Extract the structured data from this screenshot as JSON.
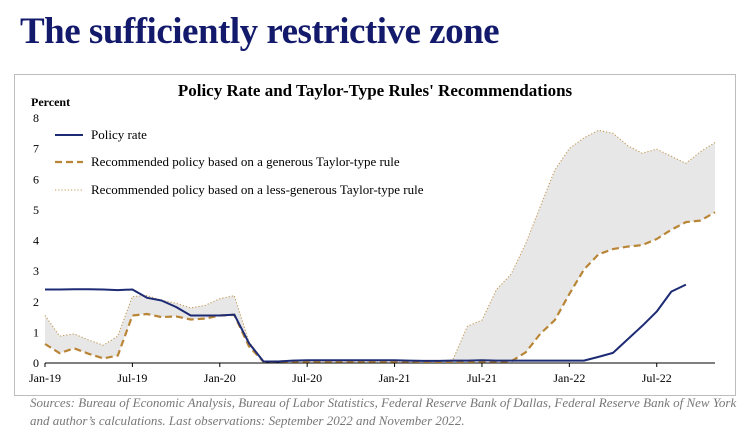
{
  "page_title": "The sufficiently restrictive zone",
  "source_note": "Sources: Bureau of Economic Analysis, Bureau of Labor Statistics, Federal Reserve Bank of Dallas, Federal Reserve Bank of New York and author’s calculations. Last observations: September 2022 and November 2022.",
  "colors": {
    "policy": "#1c2b74",
    "generous": "#b98637",
    "less_generous": "#c39a55",
    "band": "#e7e7e7",
    "title": "#131a6b"
  },
  "chart_data": {
    "type": "line",
    "title": "Policy Rate and Taylor-Type Rules' Recommendations",
    "ylabel": "Percent",
    "xlabel": "",
    "ylim": [
      0,
      8
    ],
    "yticks": [
      0,
      1,
      2,
      3,
      4,
      5,
      6,
      7,
      8
    ],
    "xlim": [
      0,
      46
    ],
    "xticks": [
      {
        "x": 0,
        "label": "Jan-19"
      },
      {
        "x": 6,
        "label": "Jul-19"
      },
      {
        "x": 12,
        "label": "Jan-20"
      },
      {
        "x": 18,
        "label": "Jul-20"
      },
      {
        "x": 24,
        "label": "Jan-21"
      },
      {
        "x": 30,
        "label": "Jul-21"
      },
      {
        "x": 36,
        "label": "Jan-22"
      },
      {
        "x": 42,
        "label": "Jul-22"
      }
    ],
    "grid": false,
    "legend": "top-left",
    "shaded_region": "between generous and less-generous rules",
    "series": [
      {
        "name": "Policy rate",
        "style": "solid",
        "x": [
          0,
          1,
          2,
          3,
          4,
          5,
          6,
          7,
          8,
          9,
          10,
          11,
          12,
          13,
          14,
          15,
          16,
          17,
          18,
          19,
          20,
          21,
          22,
          23,
          24,
          25,
          26,
          27,
          28,
          29,
          30,
          31,
          32,
          33,
          34,
          35,
          36,
          37,
          38,
          39,
          40,
          41,
          42,
          43,
          44
        ],
        "values": [
          2.4,
          2.4,
          2.41,
          2.41,
          2.4,
          2.38,
          2.4,
          2.13,
          2.04,
          1.83,
          1.55,
          1.55,
          1.55,
          1.58,
          0.65,
          0.05,
          0.05,
          0.08,
          0.09,
          0.09,
          0.09,
          0.09,
          0.09,
          0.09,
          0.09,
          0.08,
          0.07,
          0.07,
          0.08,
          0.08,
          0.09,
          0.08,
          0.08,
          0.08,
          0.08,
          0.08,
          0.08,
          0.08,
          0.2,
          0.33,
          0.77,
          1.21,
          1.68,
          2.33,
          2.56
        ]
      },
      {
        "name": "Recommended policy based on a generous Taylor-type rule",
        "style": "dashed",
        "x": [
          0,
          1,
          2,
          3,
          4,
          5,
          6,
          7,
          8,
          9,
          10,
          11,
          12,
          13,
          14,
          15,
          16,
          17,
          18,
          19,
          20,
          21,
          22,
          23,
          24,
          25,
          26,
          27,
          28,
          29,
          30,
          31,
          32,
          33,
          34,
          35,
          36,
          37,
          38,
          39,
          40,
          41,
          42,
          43,
          44,
          45,
          46
        ],
        "values": [
          0.62,
          0.32,
          0.48,
          0.3,
          0.15,
          0.24,
          1.55,
          1.6,
          1.5,
          1.52,
          1.42,
          1.45,
          1.55,
          1.57,
          0.55,
          0.04,
          0.05,
          0.05,
          0.05,
          0.05,
          0.05,
          0.05,
          0.05,
          0.05,
          0.05,
          0.05,
          0.04,
          0.04,
          0.04,
          0.04,
          0.05,
          0.05,
          0.05,
          0.35,
          0.95,
          1.4,
          2.25,
          3.05,
          3.55,
          3.72,
          3.8,
          3.85,
          4.05,
          4.35,
          4.6,
          4.65,
          4.92
        ]
      },
      {
        "name": "Recommended policy based on a less-generous Taylor-type rule",
        "style": "dotted",
        "x": [
          0,
          1,
          2,
          3,
          4,
          5,
          6,
          7,
          8,
          9,
          10,
          11,
          12,
          13,
          14,
          15,
          16,
          17,
          18,
          19,
          20,
          21,
          22,
          23,
          24,
          25,
          26,
          27,
          28,
          29,
          30,
          31,
          32,
          33,
          34,
          35,
          36,
          37,
          38,
          39,
          40,
          41,
          42,
          43,
          44,
          45,
          46
        ],
        "values": [
          1.55,
          0.88,
          0.95,
          0.75,
          0.58,
          0.88,
          2.17,
          2.2,
          2.05,
          1.95,
          1.8,
          1.88,
          2.1,
          2.2,
          0.7,
          0.05,
          0.06,
          0.06,
          0.06,
          0.06,
          0.06,
          0.06,
          0.06,
          0.06,
          0.06,
          0.06,
          0.06,
          0.07,
          0.1,
          1.2,
          1.4,
          2.4,
          2.9,
          3.9,
          5.1,
          6.3,
          7.0,
          7.35,
          7.6,
          7.5,
          7.1,
          6.85,
          6.98,
          6.75,
          6.52,
          6.9,
          7.2
        ]
      }
    ]
  }
}
